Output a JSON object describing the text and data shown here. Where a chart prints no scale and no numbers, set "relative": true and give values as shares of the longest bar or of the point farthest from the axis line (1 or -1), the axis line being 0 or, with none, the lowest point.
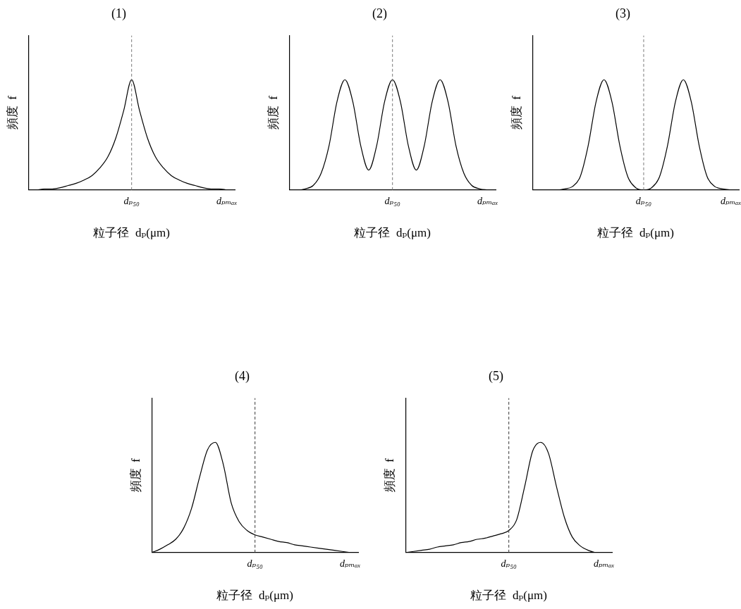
{
  "chart_data": [
    {
      "type": "line",
      "title": "(1)",
      "xlabel": "粒子径  dₚ(μm)",
      "ylabel": "頻度  f",
      "relative": true,
      "tick_labels": "x",
      "grid": false,
      "legend": false,
      "categories": [
        null,
        null,
        null,
        null,
        null,
        null,
        null,
        null,
        null,
        null,
        null,
        null,
        null,
        "dₚ₅₀",
        null,
        null,
        null,
        null,
        null,
        null,
        null,
        null,
        null,
        null,
        null,
        "dₚₘₐₓ",
        null
      ],
      "ref_lines": [
        {
          "axis": "x",
          "value": "dₚ₅₀",
          "color": "#777777",
          "line_style": "dashed"
        }
      ],
      "series": [
        {
          "color": "#000000",
          "values": [
            0,
            0,
            0.01,
            0.01,
            0.02,
            0.04,
            0.06,
            0.09,
            0.13,
            0.2,
            0.3,
            0.47,
            0.72,
            1,
            0.72,
            0.47,
            0.3,
            0.2,
            0.13,
            0.09,
            0.06,
            0.04,
            0.02,
            0.01,
            0.01,
            0,
            null
          ]
        }
      ]
    },
    {
      "type": "line",
      "title": "(2)",
      "xlabel": "粒子径  dₚ(μm)",
      "ylabel": "頻度  f",
      "relative": true,
      "tick_labels": "x",
      "grid": false,
      "legend": false,
      "categories": [
        null,
        null,
        null,
        null,
        null,
        null,
        null,
        null,
        null,
        null,
        null,
        null,
        null,
        "dₚ₅₀",
        null,
        null,
        null,
        null,
        null,
        null,
        null,
        null,
        null,
        null,
        null,
        "dₚₘₐₓ",
        null
      ],
      "ref_lines": [
        {
          "axis": "x",
          "value": "dₚ₅₀",
          "color": "#777777",
          "line_style": "dashed"
        }
      ],
      "series": [
        {
          "color": "#000000",
          "values": [
            0,
            0,
            0.01,
            0.04,
            0.15,
            0.4,
            0.8,
            1,
            0.8,
            0.4,
            0.18,
            0.4,
            0.8,
            1,
            0.8,
            0.4,
            0.18,
            0.4,
            0.8,
            1,
            0.8,
            0.4,
            0.15,
            0.04,
            0.01,
            0,
            null
          ]
        }
      ]
    },
    {
      "type": "line",
      "title": "(3)",
      "xlabel": "粒子径  dₚ(μm)",
      "ylabel": "頻度  f",
      "relative": true,
      "tick_labels": "x",
      "grid": false,
      "legend": false,
      "categories": [
        null,
        null,
        null,
        null,
        null,
        null,
        null,
        null,
        null,
        null,
        null,
        null,
        null,
        null,
        "dₚ₅₀",
        null,
        null,
        null,
        null,
        null,
        null,
        null,
        null,
        null,
        null,
        "dₚₘₐₓ",
        null
      ],
      "ref_lines": [
        {
          "axis": "x",
          "value": "dₚ₅₀",
          "color": "#777777",
          "line_style": "dashed"
        }
      ],
      "series": [
        {
          "color": "#000000",
          "values": [
            0,
            0,
            0,
            0,
            0.01,
            0.03,
            0.12,
            0.4,
            0.8,
            1,
            0.8,
            0.4,
            0.12,
            0.02,
            0,
            0.02,
            0.12,
            0.4,
            0.8,
            1,
            0.8,
            0.4,
            0.12,
            0.03,
            0.01,
            0,
            null
          ]
        }
      ]
    },
    {
      "type": "line",
      "title": "(4)",
      "xlabel": "粒子径  dₚ(μm)",
      "ylabel": "頻度  f",
      "relative": true,
      "tick_labels": "x",
      "grid": false,
      "legend": false,
      "categories": [
        null,
        null,
        null,
        null,
        null,
        null,
        null,
        null,
        null,
        null,
        null,
        null,
        null,
        "dₚ₅₀",
        null,
        null,
        null,
        null,
        null,
        null,
        null,
        null,
        null,
        null,
        null,
        "dₚₘₐₓ",
        null
      ],
      "ref_lines": [
        {
          "axis": "x",
          "value": "dₚ₅₀",
          "color": "#333333",
          "line_style": "dashed"
        }
      ],
      "series": [
        {
          "color": "#000000",
          "values": [
            0,
            0.03,
            0.07,
            0.12,
            0.22,
            0.4,
            0.68,
            0.93,
            1,
            0.8,
            0.45,
            0.28,
            0.2,
            0.16,
            0.14,
            0.12,
            0.1,
            0.09,
            0.07,
            0.06,
            0.05,
            0.04,
            0.03,
            0.02,
            0.01,
            0,
            null
          ]
        }
      ]
    },
    {
      "type": "line",
      "title": "(5)",
      "xlabel": "粒子径  dₚ(μm)",
      "ylabel": "頻度  f",
      "relative": true,
      "tick_labels": "x",
      "grid": false,
      "legend": false,
      "categories": [
        null,
        null,
        null,
        null,
        null,
        null,
        null,
        null,
        null,
        null,
        null,
        null,
        null,
        "dₚ₅₀",
        null,
        null,
        null,
        null,
        null,
        null,
        null,
        null,
        null,
        null,
        null,
        "dₚₘₐₓ",
        null
      ],
      "ref_lines": [
        {
          "axis": "x",
          "value": "dₚ₅₀",
          "color": "#333333",
          "line_style": "dashed"
        }
      ],
      "series": [
        {
          "color": "#000000",
          "values": [
            0,
            0.01,
            0.02,
            0.03,
            0.05,
            0.06,
            0.07,
            0.09,
            0.1,
            0.12,
            0.13,
            0.15,
            0.17,
            0.2,
            0.3,
            0.6,
            0.92,
            1,
            0.9,
            0.6,
            0.32,
            0.14,
            0.06,
            0.02,
            0,
            0,
            null
          ]
        }
      ]
    }
  ]
}
